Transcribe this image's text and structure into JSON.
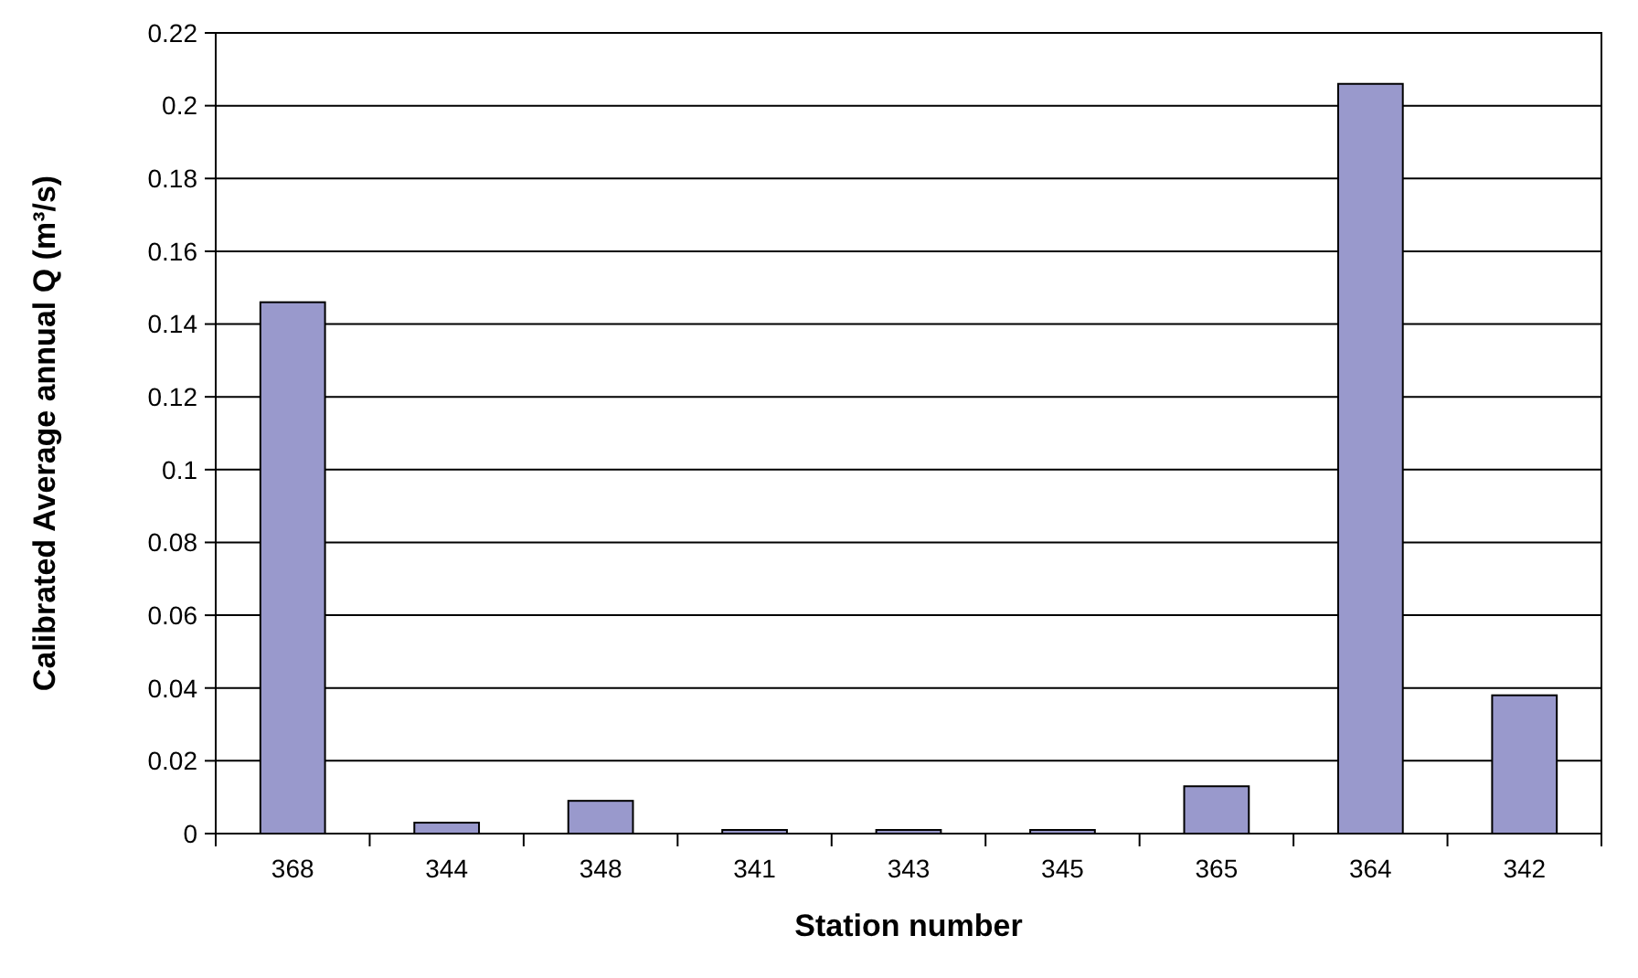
{
  "chart_data": {
    "type": "bar",
    "xlabel": "Station number",
    "ylabel": "Calibrated Average annual Q (m³/s)",
    "categories": [
      "368",
      "344",
      "348",
      "341",
      "343",
      "345",
      "365",
      "364",
      "342"
    ],
    "values": [
      0.146,
      0.003,
      0.009,
      0.001,
      0.001,
      0.001,
      0.013,
      0.206,
      0.038
    ],
    "color": "#9999cc",
    "ylim": [
      0,
      0.22
    ],
    "yticks": [
      0,
      0.02,
      0.04,
      0.06,
      0.08,
      0.1,
      0.12,
      0.14,
      0.16,
      0.18,
      0.2,
      0.22
    ],
    "grid": "y"
  }
}
